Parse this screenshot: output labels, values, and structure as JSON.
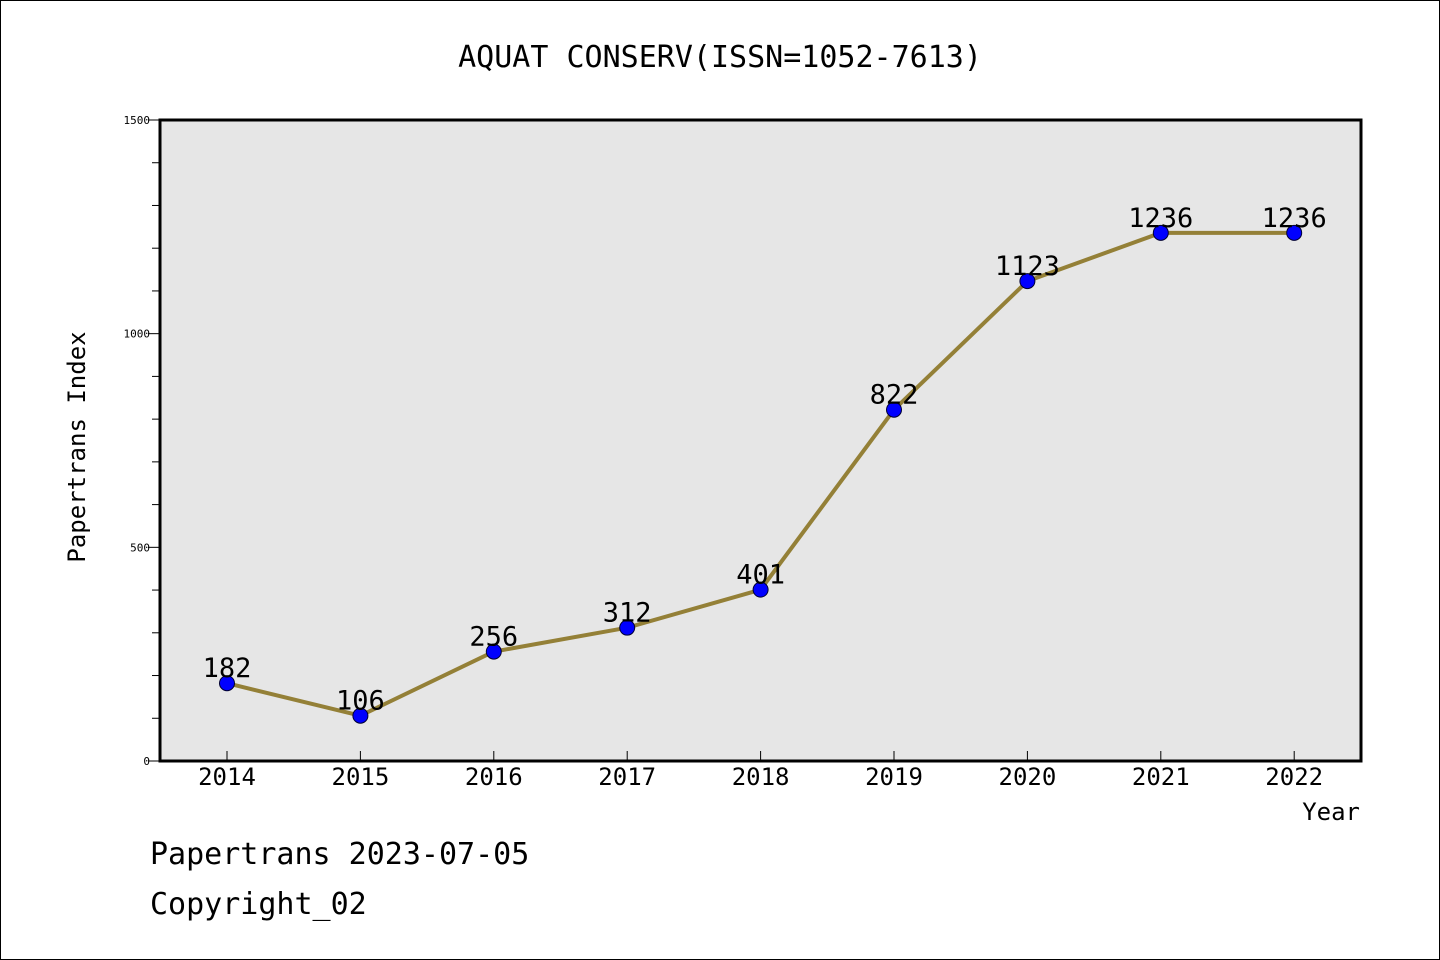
{
  "chart_data": {
    "type": "line",
    "title": "AQUAT CONSERV(ISSN=1052-7613)",
    "xlabel": "Year",
    "ylabel": "Papertrans Index",
    "categories": [
      "2014",
      "2015",
      "2016",
      "2017",
      "2018",
      "2019",
      "2020",
      "2021",
      "2022"
    ],
    "series": [
      {
        "values": [
          182,
          106,
          256,
          312,
          401,
          822,
          1123,
          1236,
          1236
        ],
        "line_color": "#948037",
        "marker_color": "#0000ff"
      }
    ],
    "data_labels": [
      "182",
      "106",
      "256",
      "312",
      "401",
      "822",
      "1123",
      "1236",
      "1236"
    ],
    "yticks": [
      0,
      500,
      1000,
      1500
    ],
    "ytick_labels": [
      "0",
      "500",
      "1000",
      "1500"
    ],
    "ylim": [
      0,
      1500
    ],
    "grid": false,
    "legend": "none",
    "plot_background": "#e6e6e6"
  },
  "footer": {
    "line1": "Papertrans 2023-07-05",
    "line2": "Copyright_02"
  }
}
